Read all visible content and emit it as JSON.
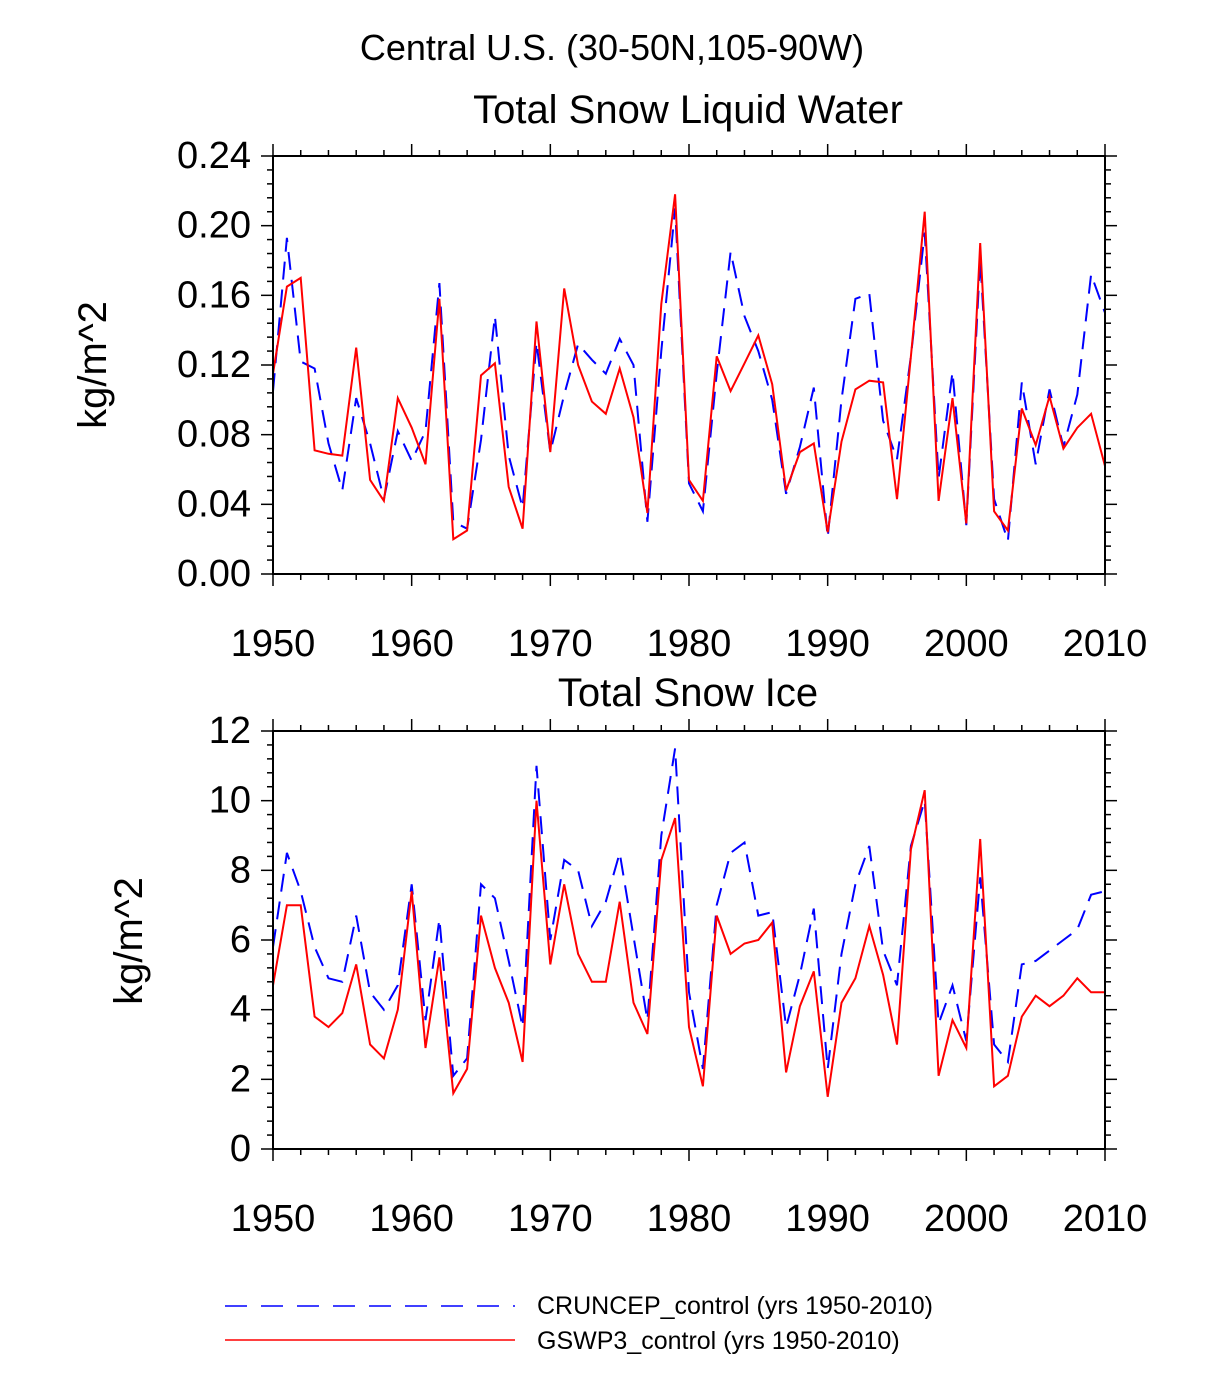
{
  "page": {
    "suptitle": "Central U.S. (30-50N,105-90W)"
  },
  "legend": {
    "placement": "bottom",
    "items": [
      {
        "label": "CRUNCEP_control (yrs 1950-2010)",
        "color": "#0000ff",
        "style": "dashed"
      },
      {
        "label": "GSWP3_control (yrs 1950-2010)",
        "color": "#ff0000",
        "style": "solid"
      }
    ]
  },
  "chart_data": [
    {
      "type": "line",
      "title": "Total Snow Liquid Water",
      "xlabel": "",
      "ylabel": "kg/m^2",
      "xlim": [
        1950,
        2010
      ],
      "ylim": [
        0,
        0.24
      ],
      "xticks": [
        1950,
        1960,
        1970,
        1980,
        1990,
        2000,
        2010
      ],
      "xtick_labels": [
        "1950",
        "1960",
        "1970",
        "1980",
        "1990",
        "2000",
        "2010"
      ],
      "yticks": [
        0,
        0.04,
        0.08,
        0.12,
        0.16,
        0.2,
        0.24
      ],
      "ytick_labels": [
        "0.00",
        "0.04",
        "0.08",
        "0.12",
        "0.16",
        "0.20",
        "0.24"
      ],
      "grid": false,
      "x": [
        1950,
        1951,
        1952,
        1953,
        1954,
        1955,
        1956,
        1957,
        1958,
        1959,
        1960,
        1961,
        1962,
        1963,
        1964,
        1965,
        1966,
        1967,
        1968,
        1969,
        1970,
        1971,
        1972,
        1973,
        1974,
        1975,
        1976,
        1977,
        1978,
        1979,
        1980,
        1981,
        1982,
        1983,
        1984,
        1985,
        1986,
        1987,
        1988,
        1989,
        1990,
        1991,
        1992,
        1993,
        1994,
        1995,
        1996,
        1997,
        1998,
        1999,
        2000,
        2001,
        2002,
        2003,
        2004,
        2005,
        2006,
        2007,
        2008,
        2009,
        2010
      ],
      "series": [
        {
          "name": "CRUNCEP_control (yrs 1950-2010)",
          "color": "#0000ff",
          "style": "dashed",
          "values": [
            0.105,
            0.193,
            0.122,
            0.118,
            0.075,
            0.048,
            0.101,
            0.075,
            0.043,
            0.082,
            0.065,
            0.082,
            0.167,
            0.03,
            0.026,
            0.077,
            0.148,
            0.068,
            0.038,
            0.133,
            0.07,
            0.103,
            0.132,
            0.123,
            0.115,
            0.135,
            0.12,
            0.03,
            0.128,
            0.21,
            0.052,
            0.036,
            0.115,
            0.185,
            0.148,
            0.128,
            0.1,
            0.046,
            0.073,
            0.107,
            0.021,
            0.1,
            0.158,
            0.161,
            0.088,
            0.066,
            0.125,
            0.196,
            0.055,
            0.116,
            0.028,
            0.181,
            0.043,
            0.019,
            0.11,
            0.063,
            0.106,
            0.073,
            0.103,
            0.172,
            0.15
          ]
        },
        {
          "name": "GSWP3_control (yrs 1950-2010)",
          "color": "#ff0000",
          "style": "solid",
          "values": [
            0.115,
            0.165,
            0.17,
            0.071,
            0.069,
            0.068,
            0.13,
            0.054,
            0.042,
            0.101,
            0.084,
            0.063,
            0.158,
            0.02,
            0.025,
            0.114,
            0.121,
            0.05,
            0.026,
            0.145,
            0.07,
            0.164,
            0.12,
            0.099,
            0.092,
            0.118,
            0.09,
            0.035,
            0.155,
            0.218,
            0.054,
            0.042,
            0.125,
            0.105,
            0.121,
            0.137,
            0.109,
            0.048,
            0.07,
            0.075,
            0.024,
            0.076,
            0.106,
            0.111,
            0.11,
            0.043,
            0.125,
            0.208,
            0.042,
            0.101,
            0.029,
            0.19,
            0.036,
            0.025,
            0.095,
            0.074,
            0.102,
            0.072,
            0.084,
            0.092,
            0.062
          ]
        }
      ]
    },
    {
      "type": "line",
      "title": "Total Snow Ice",
      "xlabel": "",
      "ylabel": "kg/m^2",
      "xlim": [
        1950,
        2010
      ],
      "ylim": [
        0,
        12
      ],
      "xticks": [
        1950,
        1960,
        1970,
        1980,
        1990,
        2000,
        2010
      ],
      "xtick_labels": [
        "1950",
        "1960",
        "1970",
        "1980",
        "1990",
        "2000",
        "2010"
      ],
      "yticks": [
        0,
        2,
        4,
        6,
        8,
        10,
        12
      ],
      "ytick_labels": [
        "0",
        "2",
        "4",
        "6",
        "8",
        "10",
        "12"
      ],
      "grid": false,
      "x": [
        1950,
        1951,
        1952,
        1953,
        1954,
        1955,
        1956,
        1957,
        1958,
        1959,
        1960,
        1961,
        1962,
        1963,
        1964,
        1965,
        1966,
        1967,
        1968,
        1969,
        1970,
        1971,
        1972,
        1973,
        1974,
        1975,
        1976,
        1977,
        1978,
        1979,
        1980,
        1981,
        1982,
        1983,
        1984,
        1985,
        1986,
        1987,
        1988,
        1989,
        1990,
        1991,
        1992,
        1993,
        1994,
        1995,
        1996,
        1997,
        1998,
        1999,
        2000,
        2001,
        2002,
        2003,
        2004,
        2005,
        2006,
        2007,
        2008,
        2009,
        2010
      ],
      "series": [
        {
          "name": "CRUNCEP_control (yrs 1950-2010)",
          "color": "#0000ff",
          "style": "dashed",
          "values": [
            5.8,
            8.5,
            7.4,
            5.8,
            4.9,
            4.8,
            6.7,
            4.5,
            4.0,
            4.7,
            7.6,
            3.7,
            6.6,
            2.1,
            2.6,
            7.6,
            7.2,
            5.4,
            3.5,
            11.0,
            6.0,
            8.3,
            8.0,
            6.4,
            7.1,
            8.5,
            6.1,
            3.7,
            9.0,
            11.5,
            4.5,
            2.3,
            7.0,
            8.5,
            8.8,
            6.7,
            6.8,
            3.5,
            5.0,
            6.9,
            2.3,
            5.6,
            7.6,
            8.7,
            5.7,
            4.7,
            8.7,
            10.0,
            3.6,
            4.7,
            3.1,
            7.8,
            3.0,
            2.5,
            5.3,
            5.4,
            5.7,
            6.0,
            6.3,
            7.3,
            7.4
          ]
        },
        {
          "name": "GSWP3_control (yrs 1950-2010)",
          "color": "#ff0000",
          "style": "solid",
          "values": [
            4.7,
            7.0,
            7.0,
            3.8,
            3.5,
            3.9,
            5.3,
            3.0,
            2.6,
            4.0,
            7.4,
            2.9,
            5.5,
            1.6,
            2.3,
            6.7,
            5.2,
            4.2,
            2.5,
            10.0,
            5.3,
            7.6,
            5.6,
            4.8,
            4.8,
            7.1,
            4.2,
            3.3,
            8.3,
            9.5,
            3.5,
            1.8,
            6.7,
            5.6,
            5.9,
            6.0,
            6.5,
            2.2,
            4.1,
            5.1,
            1.5,
            4.2,
            4.9,
            6.4,
            5.0,
            3.0,
            8.6,
            10.3,
            2.1,
            3.7,
            2.9,
            8.9,
            1.8,
            2.1,
            3.8,
            4.4,
            4.1,
            4.4,
            4.9,
            4.5,
            4.5
          ]
        }
      ]
    }
  ]
}
